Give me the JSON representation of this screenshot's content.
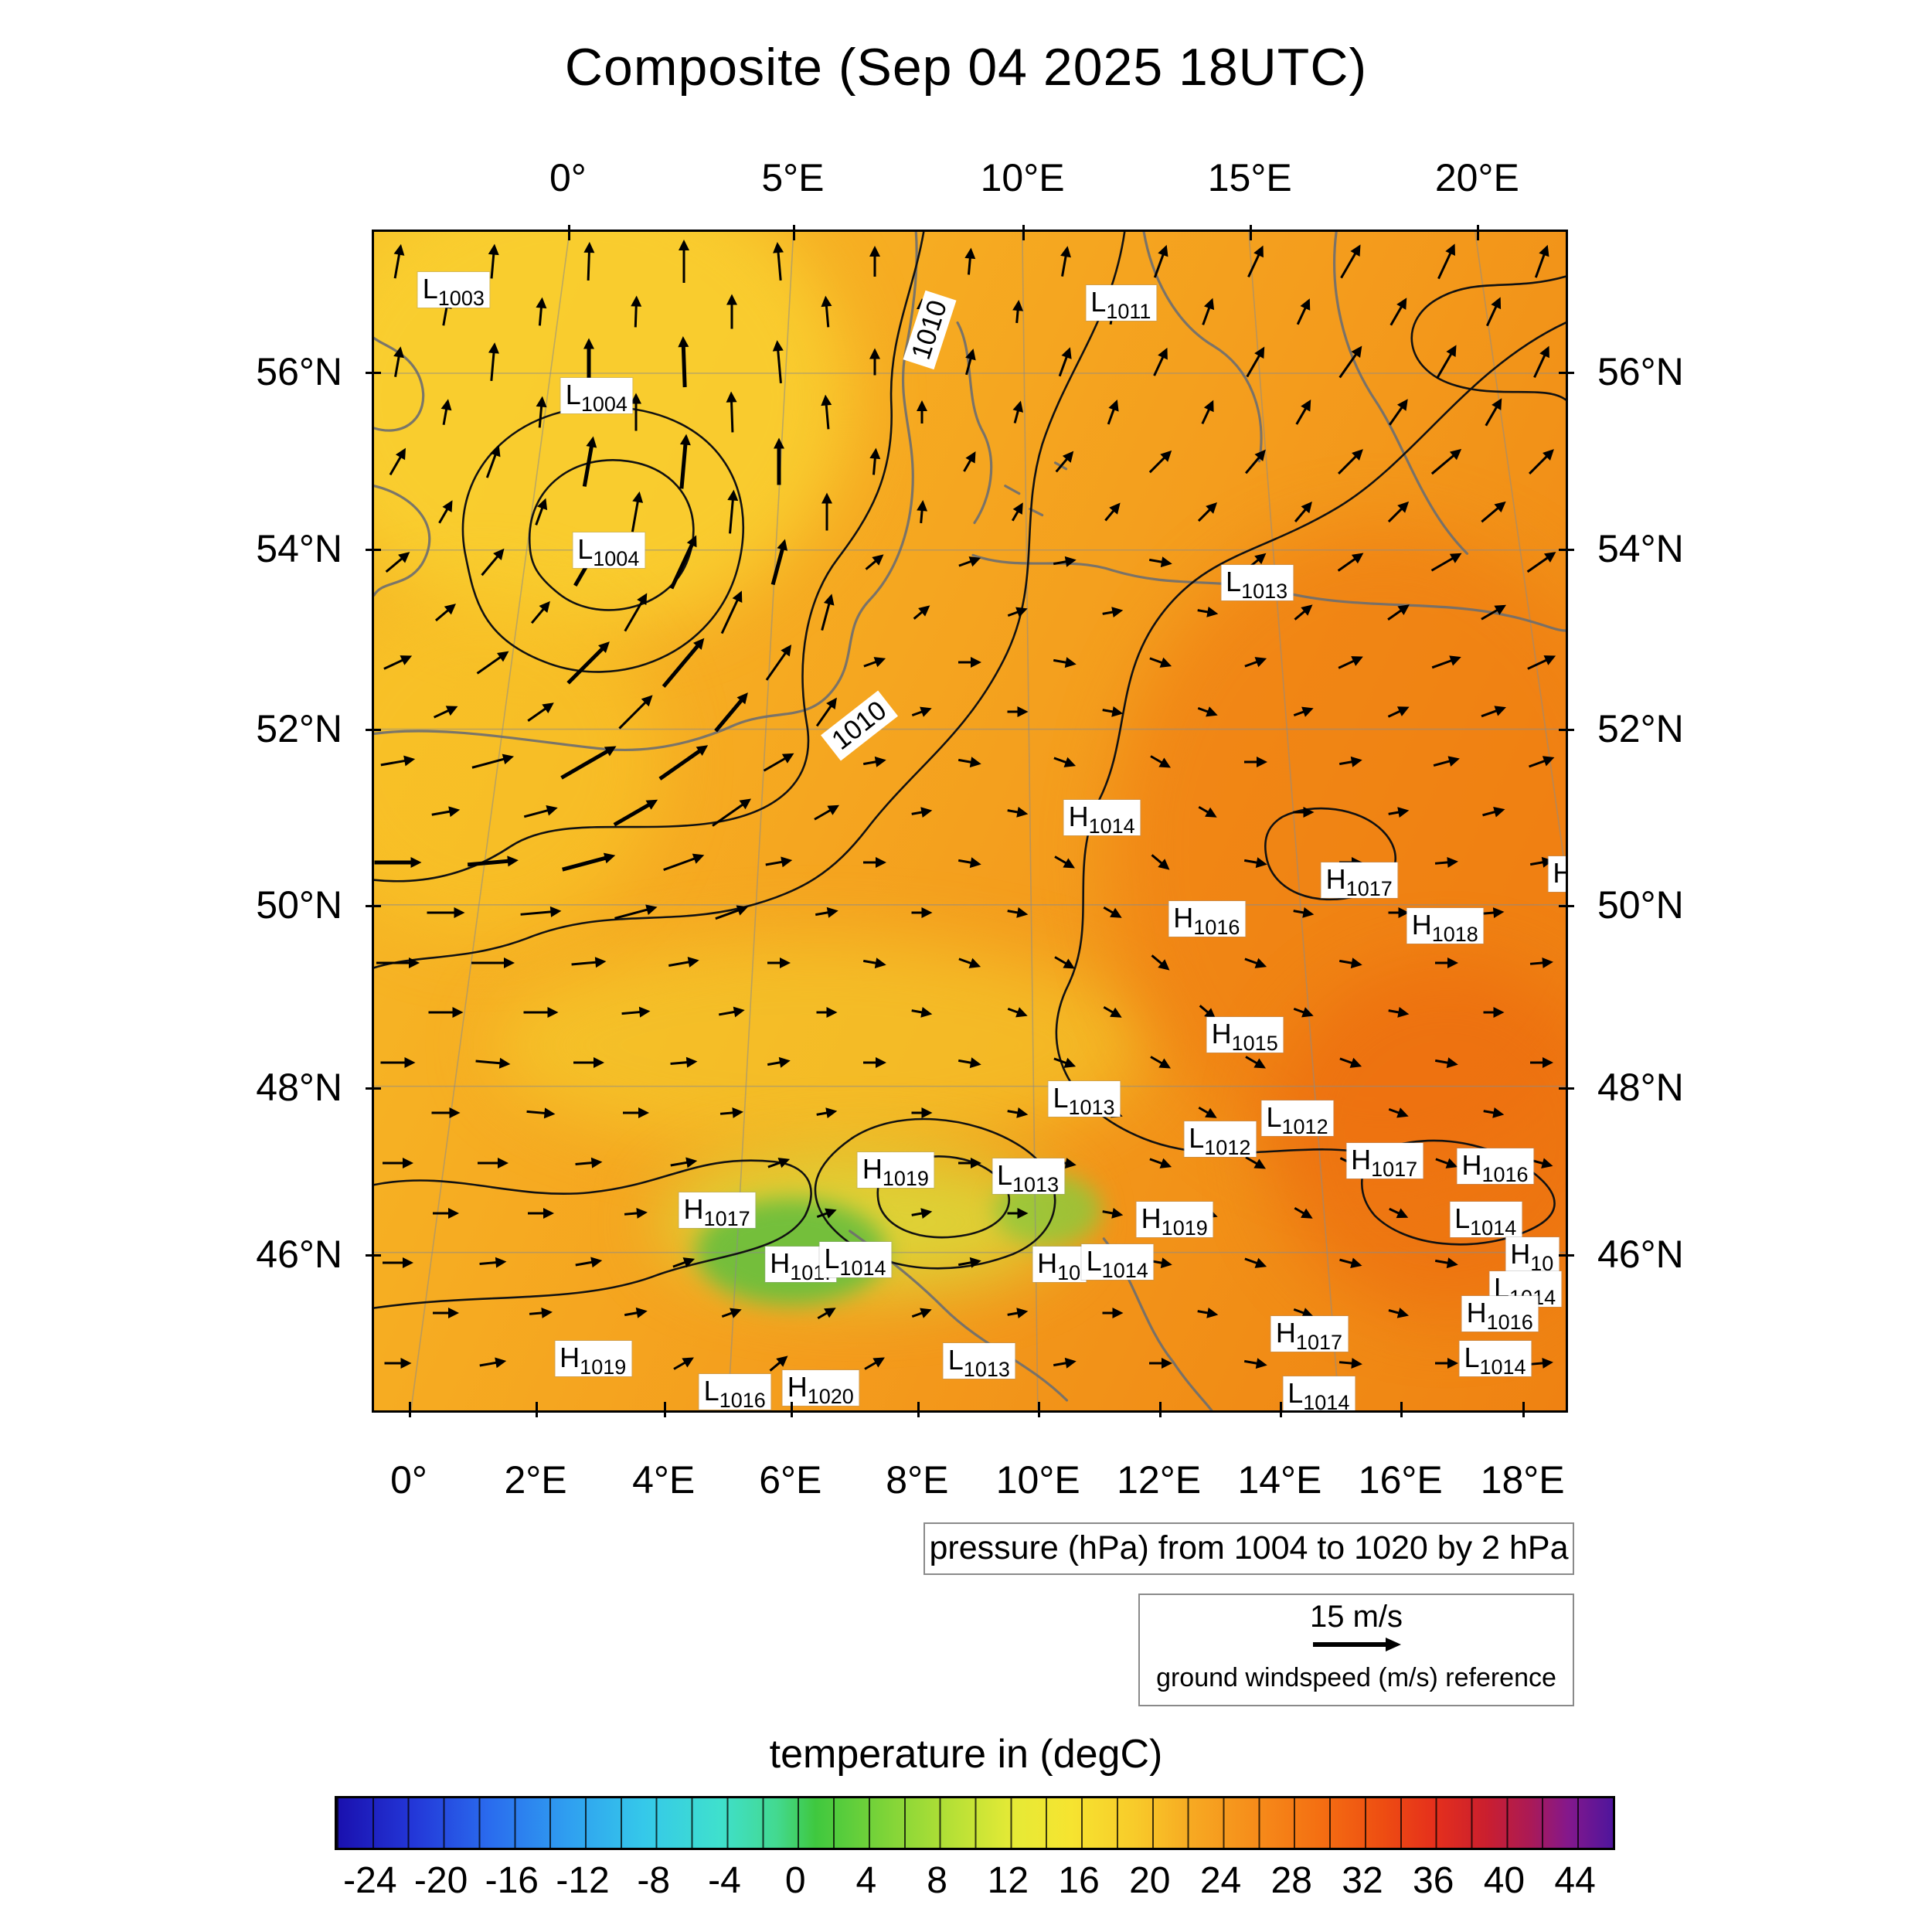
{
  "chart_data": {
    "type": "heatmap",
    "title": "Composite (Sep 04 2025 18UTC)",
    "axes": {
      "top": [
        {
          "label": "0°",
          "f": 0.164
        },
        {
          "label": "5°E",
          "f": 0.352
        },
        {
          "label": "10°E",
          "f": 0.544
        },
        {
          "label": "15°E",
          "f": 0.734
        },
        {
          "label": "20°E",
          "f": 0.924
        }
      ],
      "bottom": [
        {
          "label": "0°",
          "f": 0.031
        },
        {
          "label": "2°E",
          "f": 0.137
        },
        {
          "label": "4°E",
          "f": 0.244
        },
        {
          "label": "6°E",
          "f": 0.35
        },
        {
          "label": "8°E",
          "f": 0.456
        },
        {
          "label": "10°E",
          "f": 0.557
        },
        {
          "label": "12°E",
          "f": 0.658
        },
        {
          "label": "14°E",
          "f": 0.759
        },
        {
          "label": "16°E",
          "f": 0.86
        },
        {
          "label": "18°E",
          "f": 0.962
        }
      ],
      "lat": [
        {
          "label": "56°N",
          "f": 0.12
        },
        {
          "label": "54°N",
          "f": 0.27
        },
        {
          "label": "52°N",
          "f": 0.422
        },
        {
          "label": "50°N",
          "f": 0.571
        },
        {
          "label": "48°N",
          "f": 0.725
        },
        {
          "label": "46°N",
          "f": 0.866
        }
      ]
    },
    "pressure": {
      "caption": "pressure (hPa) from 1004 to 1020 by 2 hPa",
      "contour_min": 1004,
      "contour_max": 1020,
      "contour_step": 2,
      "labeled_contours": [
        {
          "text": "1010",
          "x": 0.466,
          "y": 0.083,
          "rot": -72
        },
        {
          "text": "1010",
          "x": 0.407,
          "y": 0.419,
          "rot": -38
        }
      ]
    },
    "pressure_centers": [
      {
        "t": "L",
        "v": "1003",
        "x": 0.067,
        "y": 0.049
      },
      {
        "t": "L",
        "v": "1011",
        "x": 0.627,
        "y": 0.06
      },
      {
        "t": "L",
        "v": "1004",
        "x": 0.187,
        "y": 0.139
      },
      {
        "t": "L",
        "v": "1004",
        "x": 0.197,
        "y": 0.27
      },
      {
        "t": "L",
        "v": "1013",
        "x": 0.741,
        "y": 0.298
      },
      {
        "t": "H",
        "v": "1014",
        "x": 0.611,
        "y": 0.497
      },
      {
        "t": "H",
        "v": "1017",
        "x": 0.827,
        "y": 0.55
      },
      {
        "t": "H",
        "v": "1016",
        "x": 0.699,
        "y": 0.583
      },
      {
        "t": "H",
        "v": "1018",
        "x": 0.899,
        "y": 0.589
      },
      {
        "t": "H",
        "v": "",
        "x": 0.998,
        "y": 0.545
      },
      {
        "t": "H",
        "v": "1015",
        "x": 0.731,
        "y": 0.681
      },
      {
        "t": "L",
        "v": "1013",
        "x": 0.596,
        "y": 0.736
      },
      {
        "t": "L",
        "v": "1012",
        "x": 0.775,
        "y": 0.752
      },
      {
        "t": "L",
        "v": "1012",
        "x": 0.71,
        "y": 0.77
      },
      {
        "t": "H",
        "v": "1019",
        "x": 0.438,
        "y": 0.796
      },
      {
        "t": "L",
        "v": "1013",
        "x": 0.549,
        "y": 0.801
      },
      {
        "t": "H",
        "v": "1017",
        "x": 0.848,
        "y": 0.788
      },
      {
        "t": "H",
        "v": "1016",
        "x": 0.941,
        "y": 0.793
      },
      {
        "t": "H",
        "v": "1017",
        "x": 0.288,
        "y": 0.83
      },
      {
        "t": "H",
        "v": "1019",
        "x": 0.672,
        "y": 0.838
      },
      {
        "t": "L",
        "v": "1014",
        "x": 0.933,
        "y": 0.838
      },
      {
        "t": "H",
        "v": "101.",
        "x": 0.358,
        "y": 0.876
      },
      {
        "t": "L",
        "v": "1014",
        "x": 0.404,
        "y": 0.872
      },
      {
        "t": "H",
        "v": "10",
        "x": 0.575,
        "y": 0.876
      },
      {
        "t": "L",
        "v": "1014",
        "x": 0.624,
        "y": 0.874
      },
      {
        "t": "H",
        "v": "10",
        "x": 0.972,
        "y": 0.868
      },
      {
        "t": "L",
        "v": "1014",
        "x": 0.966,
        "y": 0.897
      },
      {
        "t": "H",
        "v": "1016",
        "x": 0.945,
        "y": 0.918
      },
      {
        "t": "L",
        "v": "1014",
        "x": 0.941,
        "y": 0.956
      },
      {
        "t": "H",
        "v": "1017",
        "x": 0.785,
        "y": 0.935
      },
      {
        "t": "H",
        "v": "1019",
        "x": 0.184,
        "y": 0.956
      },
      {
        "t": "L",
        "v": "1016",
        "x": 0.303,
        "y": 0.984
      },
      {
        "t": "H",
        "v": "1020",
        "x": 0.375,
        "y": 0.981
      },
      {
        "t": "L",
        "v": "1013",
        "x": 0.508,
        "y": 0.958
      },
      {
        "t": "L",
        "v": "1014",
        "x": 0.793,
        "y": 0.986
      }
    ],
    "wind": {
      "reference": {
        "speed": "15 m/s",
        "caption": "ground windspeed (m/s) reference"
      },
      "grid_rows": [
        [
          [
            80,
            0.6
          ],
          [
            85,
            0.6
          ],
          [
            88,
            0.7
          ],
          [
            90,
            0.8
          ],
          [
            95,
            0.7
          ],
          [
            90,
            0.5
          ],
          [
            85,
            0.4
          ],
          [
            80,
            0.5
          ],
          [
            70,
            0.6
          ],
          [
            65,
            0.6
          ],
          [
            60,
            0.7
          ],
          [
            65,
            0.7
          ],
          [
            70,
            0.6
          ]
        ],
        [
          [
            80,
            0.5
          ],
          [
            85,
            0.7
          ],
          [
            90,
            0.9
          ],
          [
            92,
            1.0
          ],
          [
            95,
            0.8
          ],
          [
            90,
            0.4
          ],
          [
            75,
            0.4
          ],
          [
            70,
            0.5
          ],
          [
            65,
            0.5
          ],
          [
            60,
            0.6
          ],
          [
            55,
            0.7
          ],
          [
            60,
            0.7
          ],
          [
            65,
            0.6
          ]
        ],
        [
          [
            60,
            0.5
          ],
          [
            70,
            0.6
          ],
          [
            80,
            1.0
          ],
          [
            85,
            1.1
          ],
          [
            90,
            0.9
          ],
          [
            85,
            0.4
          ],
          [
            60,
            0.3
          ],
          [
            50,
            0.4
          ],
          [
            45,
            0.5
          ],
          [
            50,
            0.5
          ],
          [
            45,
            0.6
          ],
          [
            40,
            0.7
          ],
          [
            45,
            0.6
          ]
        ],
        [
          [
            40,
            0.5
          ],
          [
            50,
            0.6
          ],
          [
            60,
            1.1
          ],
          [
            65,
            1.2
          ],
          [
            75,
            0.9
          ],
          [
            40,
            0.3
          ],
          [
            20,
            0.3
          ],
          [
            10,
            0.3
          ],
          [
            350,
            0.3
          ],
          [
            40,
            0.4
          ],
          [
            35,
            0.5
          ],
          [
            30,
            0.6
          ],
          [
            35,
            0.6
          ]
        ],
        [
          [
            25,
            0.5
          ],
          [
            35,
            0.7
          ],
          [
            45,
            1.2
          ],
          [
            50,
            1.3
          ],
          [
            55,
            0.8
          ],
          [
            20,
            0.3
          ],
          [
            0,
            0.3
          ],
          [
            350,
            0.3
          ],
          [
            340,
            0.3
          ],
          [
            20,
            0.3
          ],
          [
            25,
            0.4
          ],
          [
            20,
            0.5
          ],
          [
            25,
            0.5
          ]
        ],
        [
          [
            10,
            0.6
          ],
          [
            15,
            0.8
          ],
          [
            30,
            1.3
          ],
          [
            35,
            1.2
          ],
          [
            30,
            0.6
          ],
          [
            10,
            0.3
          ],
          [
            350,
            0.3
          ],
          [
            340,
            0.3
          ],
          [
            330,
            0.3
          ],
          [
            0,
            0.3
          ],
          [
            10,
            0.3
          ],
          [
            15,
            0.4
          ],
          [
            20,
            0.4
          ]
        ],
        [
          [
            0,
            0.9
          ],
          [
            5,
            1.0
          ],
          [
            15,
            1.1
          ],
          [
            20,
            0.8
          ],
          [
            10,
            0.4
          ],
          [
            0,
            0.3
          ],
          [
            350,
            0.3
          ],
          [
            330,
            0.3
          ],
          [
            320,
            0.3
          ],
          [
            350,
            0.3
          ],
          [
            0,
            0.3
          ],
          [
            5,
            0.3
          ],
          [
            10,
            0.3
          ]
        ],
        [
          [
            0,
            0.8
          ],
          [
            0,
            0.8
          ],
          [
            5,
            0.6
          ],
          [
            10,
            0.5
          ],
          [
            0,
            0.3
          ],
          [
            350,
            0.3
          ],
          [
            340,
            0.3
          ],
          [
            330,
            0.3
          ],
          [
            320,
            0.3
          ],
          [
            340,
            0.3
          ],
          [
            350,
            0.3
          ],
          [
            0,
            0.3
          ],
          [
            5,
            0.3
          ]
        ],
        [
          [
            0,
            0.6
          ],
          [
            355,
            0.6
          ],
          [
            0,
            0.5
          ],
          [
            5,
            0.4
          ],
          [
            10,
            0.3
          ],
          [
            0,
            0.3
          ],
          [
            350,
            0.3
          ],
          [
            340,
            0.3
          ],
          [
            330,
            0.3
          ],
          [
            330,
            0.3
          ],
          [
            340,
            0.3
          ],
          [
            350,
            0.3
          ],
          [
            0,
            0.3
          ]
        ],
        [
          [
            0,
            0.5
          ],
          [
            0,
            0.5
          ],
          [
            5,
            0.4
          ],
          [
            10,
            0.4
          ],
          [
            20,
            0.3
          ],
          [
            10,
            0.3
          ],
          [
            0,
            0.3
          ],
          [
            350,
            0.3
          ],
          [
            340,
            0.3
          ],
          [
            330,
            0.3
          ],
          [
            335,
            0.3
          ],
          [
            340,
            0.3
          ],
          [
            345,
            0.3
          ]
        ],
        [
          [
            0,
            0.5
          ],
          [
            5,
            0.4
          ],
          [
            10,
            0.4
          ],
          [
            20,
            0.3
          ],
          [
            30,
            0.3
          ],
          [
            20,
            0.3
          ],
          [
            10,
            0.3
          ],
          [
            0,
            0.3
          ],
          [
            350,
            0.3
          ],
          [
            340,
            0.3
          ],
          [
            345,
            0.3
          ],
          [
            350,
            0.3
          ],
          [
            355,
            0.3
          ]
        ],
        [
          [
            0,
            0.4
          ],
          [
            10,
            0.4
          ],
          [
            20,
            0.3
          ],
          [
            30,
            0.3
          ],
          [
            40,
            0.3
          ],
          [
            30,
            0.3
          ],
          [
            20,
            0.3
          ],
          [
            10,
            0.3
          ],
          [
            0,
            0.3
          ],
          [
            350,
            0.3
          ],
          [
            355,
            0.3
          ],
          [
            0,
            0.3
          ],
          [
            5,
            0.3
          ]
        ]
      ]
    },
    "temperature": {
      "title": "temperature in (degC)",
      "unit": "degC",
      "cbar_min": -26,
      "cbar_max": 46,
      "cbar_ticks": [
        -24,
        -20,
        -16,
        -12,
        -8,
        -4,
        0,
        4,
        8,
        12,
        16,
        20,
        24,
        28,
        32,
        36,
        40,
        44
      ],
      "cbar_stops": [
        [
          0,
          "#1a10ae"
        ],
        [
          0.06,
          "#2337d8"
        ],
        [
          0.12,
          "#2a6cee"
        ],
        [
          0.18,
          "#2f9ef0"
        ],
        [
          0.24,
          "#35c8ea"
        ],
        [
          0.3,
          "#3fe0cd"
        ],
        [
          0.345,
          "#43d98f"
        ],
        [
          0.375,
          "#3fc83f"
        ],
        [
          0.43,
          "#7ed438"
        ],
        [
          0.48,
          "#b4e036"
        ],
        [
          0.53,
          "#e6ea36"
        ],
        [
          0.575,
          "#f6e430"
        ],
        [
          0.625,
          "#f8cb2a"
        ],
        [
          0.67,
          "#f7a922"
        ],
        [
          0.72,
          "#f68c1a"
        ],
        [
          0.77,
          "#f46f12"
        ],
        [
          0.82,
          "#ee4d12"
        ],
        [
          0.86,
          "#e5301c"
        ],
        [
          0.9,
          "#cb1f2e"
        ],
        [
          0.935,
          "#ab1a56"
        ],
        [
          0.965,
          "#84188c"
        ],
        [
          1,
          "#4f159c"
        ]
      ]
    }
  }
}
